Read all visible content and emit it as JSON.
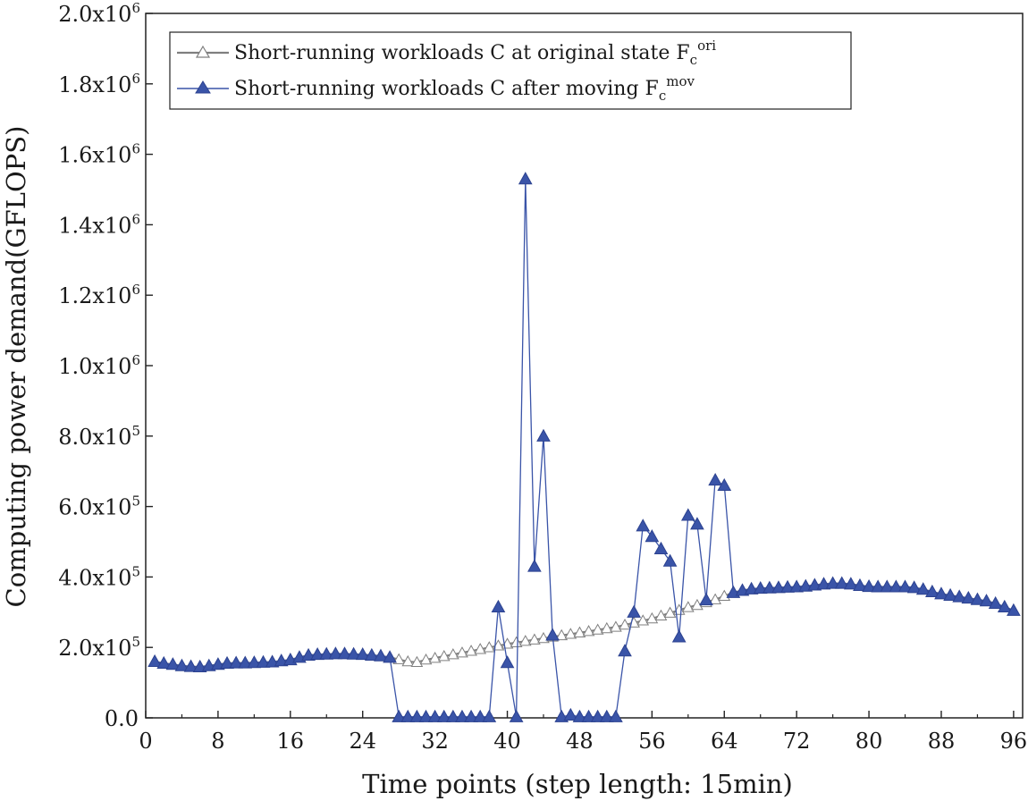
{
  "chart_data": {
    "type": "line",
    "xlabel": "Time points (step length: 15min)",
    "ylabel": "Computing power demand(GFLOPS)",
    "xlim": [
      0,
      97
    ],
    "ylim": [
      0,
      2000000
    ],
    "x_ticks": [
      0,
      8,
      16,
      24,
      32,
      40,
      48,
      56,
      64,
      72,
      80,
      88,
      96
    ],
    "x_tick_labels": [
      "0",
      "8",
      "16",
      "24",
      "32",
      "40",
      "48",
      "56",
      "64",
      "72",
      "80",
      "88",
      "96"
    ],
    "y_ticks": [
      0,
      200000,
      400000,
      600000,
      800000,
      1000000,
      1200000,
      1400000,
      1600000,
      1800000,
      2000000
    ],
    "y_tick_labels": [
      {
        "base": "0.0",
        "exp": ""
      },
      {
        "base": "2.0x10",
        "exp": "5"
      },
      {
        "base": "4.0x10",
        "exp": "5"
      },
      {
        "base": "6.0x10",
        "exp": "5"
      },
      {
        "base": "8.0x10",
        "exp": "5"
      },
      {
        "base": "1.0x10",
        "exp": "6"
      },
      {
        "base": "1.2x10",
        "exp": "6"
      },
      {
        "base": "1.4x10",
        "exp": "6"
      },
      {
        "base": "1.6x10",
        "exp": "6"
      },
      {
        "base": "1.8x10",
        "exp": "6"
      },
      {
        "base": "2.0x10",
        "exp": "6"
      }
    ],
    "legend_position": "top-left",
    "x": [
      1,
      2,
      3,
      4,
      5,
      6,
      7,
      8,
      9,
      10,
      11,
      12,
      13,
      14,
      15,
      16,
      17,
      18,
      19,
      20,
      21,
      22,
      23,
      24,
      25,
      26,
      27,
      28,
      29,
      30,
      31,
      32,
      33,
      34,
      35,
      36,
      37,
      38,
      39,
      40,
      41,
      42,
      43,
      44,
      45,
      46,
      47,
      48,
      49,
      50,
      51,
      52,
      53,
      54,
      55,
      56,
      57,
      58,
      59,
      60,
      61,
      62,
      63,
      64,
      65,
      66,
      67,
      68,
      69,
      70,
      71,
      72,
      73,
      74,
      75,
      76,
      77,
      78,
      79,
      80,
      81,
      82,
      83,
      84,
      85,
      86,
      87,
      88,
      89,
      90,
      91,
      92,
      93,
      94,
      95,
      96
    ],
    "series": [
      {
        "name": "Short-running workloads C at original state F",
        "name_sub": "c",
        "name_sup": "ori",
        "color": "#7f7f7f",
        "marker": "open-triangle",
        "values": [
          160000,
          155000,
          152000,
          148000,
          146000,
          145000,
          148000,
          152000,
          155000,
          156000,
          156000,
          157000,
          158000,
          159000,
          162000,
          165000,
          172000,
          178000,
          180000,
          181000,
          182000,
          182000,
          181000,
          180000,
          178000,
          176000,
          172000,
          166000,
          160000,
          158000,
          165000,
          170000,
          175000,
          180000,
          185000,
          190000,
          195000,
          200000,
          205000,
          210000,
          214000,
          218000,
          222000,
          226000,
          230000,
          234000,
          238000,
          242000,
          246000,
          250000,
          254000,
          258000,
          264000,
          270000,
          276000,
          282000,
          290000,
          298000,
          306000,
          314000,
          320000,
          328000,
          336000,
          346000,
          356000,
          362000,
          366000,
          368000,
          369000,
          370000,
          371000,
          372000,
          374000,
          377000,
          380000,
          382000,
          382000,
          380000,
          376000,
          373000,
          372000,
          372000,
          372000,
          372000,
          370000,
          365000,
          358000,
          352000,
          348000,
          344000,
          340000,
          336000,
          332000,
          325000,
          315000,
          305000
        ]
      },
      {
        "name": "Short-running workloads C after moving F",
        "name_sub": "c",
        "name_sup": "mov",
        "color": "#3a54a8",
        "marker": "filled-triangle",
        "values": [
          160000,
          155000,
          152000,
          148000,
          146000,
          145000,
          148000,
          152000,
          155000,
          156000,
          156000,
          157000,
          158000,
          159000,
          162000,
          165000,
          172000,
          178000,
          180000,
          181000,
          182000,
          182000,
          181000,
          180000,
          178000,
          176000,
          172000,
          3000,
          3000,
          3000,
          3000,
          3000,
          3000,
          3000,
          3000,
          3000,
          3000,
          3000,
          315000,
          157000,
          3000,
          1530000,
          430000,
          800000,
          235000,
          3000,
          8000,
          3000,
          3000,
          3000,
          3000,
          3000,
          190000,
          300000,
          545000,
          515000,
          480000,
          445000,
          230000,
          575000,
          550000,
          335000,
          675000,
          660000,
          356000,
          362000,
          366000,
          368000,
          369000,
          370000,
          371000,
          372000,
          374000,
          377000,
          380000,
          382000,
          382000,
          380000,
          376000,
          373000,
          372000,
          372000,
          372000,
          372000,
          370000,
          365000,
          358000,
          352000,
          348000,
          344000,
          340000,
          336000,
          332000,
          325000,
          315000,
          305000
        ]
      }
    ]
  }
}
